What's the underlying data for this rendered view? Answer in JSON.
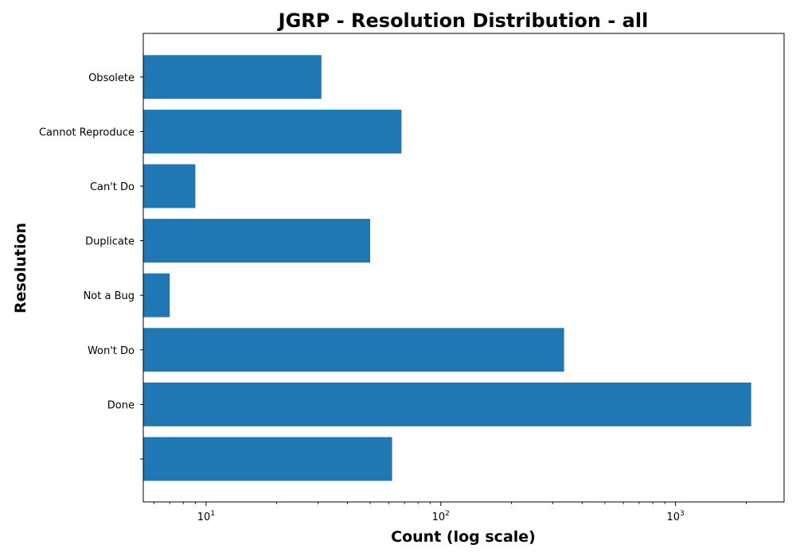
{
  "chart_data": {
    "type": "bar",
    "orientation": "horizontal",
    "title": "JGRP - Resolution Distribution - all",
    "xlabel": "Count (log scale)",
    "ylabel": "Resolution",
    "x_scale": "log",
    "xlim": [
      5.4,
      2900
    ],
    "x_ticks": [
      {
        "value": 10,
        "base": "10",
        "exponent": "1"
      },
      {
        "value": 100,
        "base": "10",
        "exponent": "2"
      },
      {
        "value": 1000,
        "base": "10",
        "exponent": "3"
      }
    ],
    "grid": false,
    "legend": "none",
    "bar_color": "#1f77b4",
    "categories": [
      "",
      "Done",
      "Won't Do",
      "Not a Bug",
      "Duplicate",
      "Can't Do",
      "Cannot Reproduce",
      "Obsolete"
    ],
    "values": [
      62,
      2100,
      335,
      7,
      50,
      9,
      68,
      31
    ]
  }
}
